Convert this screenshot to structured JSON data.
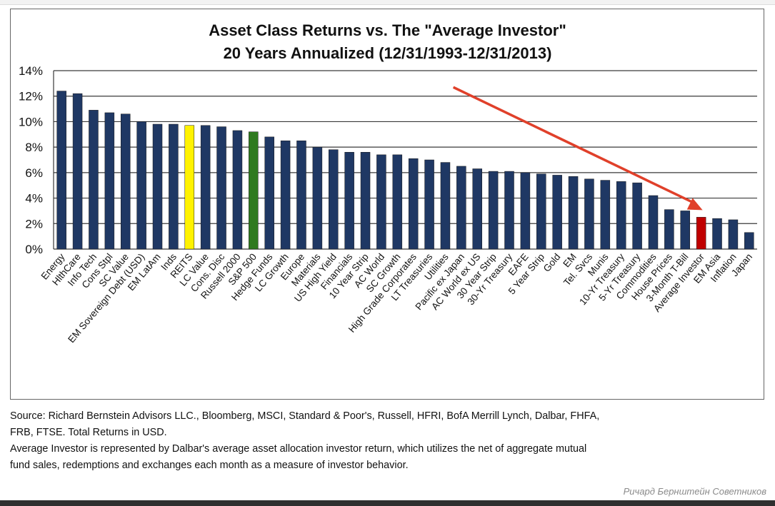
{
  "chart_data": {
    "type": "bar",
    "title": "Asset Class Returns vs. The \"Average Investor\"",
    "subtitle": "20 Years Annualized (12/31/1993-12/31/2013)",
    "categories": [
      "Energy",
      "HlthCare",
      "Info Tech",
      "Cons Stpl",
      "SC Value",
      "EM Sovereign Debt (USD)",
      "EM LatAm",
      "Inds",
      "REITS",
      "LC Value",
      "Cons. Disc",
      "Russell 2000",
      "S&P 500",
      "Hedge Funds",
      "LC Growth",
      "Europe",
      "Materials",
      "US High Yield",
      "Financials",
      "10 Year Strip",
      "AC World",
      "SC Growth",
      "High Grade Corporates",
      "LT Treasuries",
      "Utilities",
      "Pacific ex Japan",
      "AC World ex US",
      "30 Year Strip",
      "30-Yr Treasury",
      "EAFE",
      "5 Year Strip",
      "Gold",
      "EM",
      "Tel. Svcs",
      "Munis",
      "10-Yr Treasury",
      "5-Yr Treasury",
      "Commodities",
      "House Prices",
      "3-Month T-Bill",
      "Average Investor",
      "EM Asia",
      "Inflation",
      "Japan"
    ],
    "values": [
      12.4,
      12.2,
      10.9,
      10.7,
      10.6,
      10.0,
      9.8,
      9.8,
      9.7,
      9.7,
      9.6,
      9.3,
      9.2,
      8.8,
      8.5,
      8.5,
      8.0,
      7.8,
      7.6,
      7.6,
      7.4,
      7.4,
      7.1,
      7.0,
      6.8,
      6.5,
      6.3,
      6.1,
      6.1,
      6.0,
      5.9,
      5.8,
      5.7,
      5.5,
      5.4,
      5.3,
      5.2,
      4.2,
      3.1,
      3.0,
      2.5,
      2.4,
      2.3,
      1.3
    ],
    "highlights": {
      "REITS": "#fff200",
      "S&P 500": "#2f7a1f",
      "Average Investor": "#c00000"
    },
    "default_color": "#1f3864",
    "y_ticks": [
      "0%",
      "2%",
      "4%",
      "6%",
      "8%",
      "10%",
      "12%",
      "14%"
    ],
    "ylim": [
      0,
      14
    ],
    "grid": true,
    "annotation": {
      "type": "arrow",
      "color": "#e0402a",
      "from_category": "Russell 2000",
      "to_category": "Average Investor"
    }
  },
  "source_lines": [
    "Source: Richard Bernstein Advisors LLC., Bloomberg, MSCI, Standard & Poor's, Russell, HFRI, BofA Merrill Lynch, Dalbar, FHFA,",
    "FRB, FTSE.  Total Returns in USD.",
    "Average Investor is represented by Dalbar's average asset allocation investor return, which utilizes the net of aggregate mutual",
    "fund sales, redemptions and exchanges each month as a measure of investor behavior."
  ],
  "credit": "Ричард Бернштейн Советников"
}
